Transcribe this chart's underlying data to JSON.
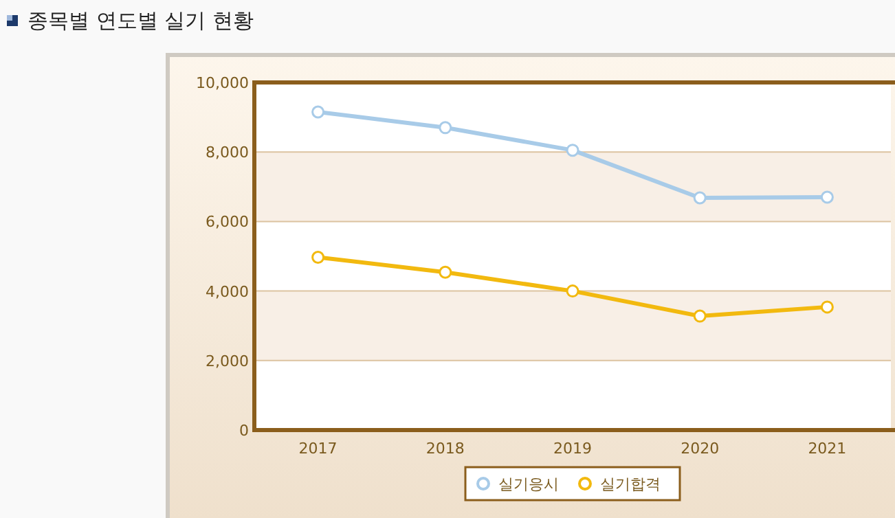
{
  "chart_data": {
    "type": "line",
    "title": "종목별 연도별 실기 현황",
    "categories": [
      "2017",
      "2018",
      "2019",
      "2020",
      "2021"
    ],
    "series": [
      {
        "name": "실기응시",
        "color": "#a8cbe8",
        "values": [
          9150,
          8700,
          8050,
          6680,
          6700
        ]
      },
      {
        "name": "실기합격",
        "color": "#f2b90f",
        "values": [
          4970,
          4540,
          4000,
          3280,
          3540
        ]
      }
    ],
    "ylim": [
      0,
      10000
    ],
    "yticks": [
      {
        "value": 0,
        "label": "0"
      },
      {
        "value": 2000,
        "label": "2,000"
      },
      {
        "value": 4000,
        "label": "4,000"
      },
      {
        "value": 6000,
        "label": "6,000"
      },
      {
        "value": 8000,
        "label": "8,000"
      },
      {
        "value": 10000,
        "label": "10,000"
      }
    ],
    "grid": "y",
    "legend": "bottom",
    "marker": "circle",
    "line_style": "solid"
  }
}
